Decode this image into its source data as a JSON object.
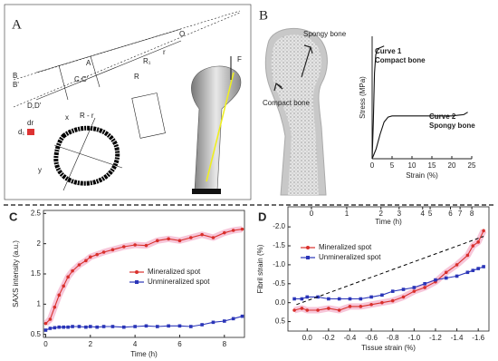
{
  "diagram_a": {
    "label": "A",
    "texts": [
      "F",
      "R - r",
      "x",
      "y",
      "B",
      "B'",
      "D,D'",
      "C,C'",
      "A",
      "R",
      "R₁",
      "r",
      "O",
      "dr",
      "d₁"
    ]
  },
  "diagram_b": {
    "label": "B",
    "texts": [
      "Spongy bone",
      "Compact bone"
    ]
  },
  "chart_data": [
    {
      "type": "line",
      "xlabel": "Strain (%)",
      "ylabel": "Stress (MPa)",
      "xlim": [
        0,
        25
      ],
      "ylim": [
        0,
        100
      ],
      "xticks": [
        0,
        5,
        10,
        15,
        20,
        25
      ],
      "frame": false,
      "annotations": [
        "Curve 1",
        "Compact bone",
        "Curve 2",
        "Spongy bone"
      ],
      "series": [
        {
          "color": "#111111",
          "x": [
            0,
            0.3,
            0.6,
            0.9,
            1.5,
            3
          ],
          "values": [
            0,
            30,
            70,
            85,
            90,
            92
          ]
        },
        {
          "color": "#111111",
          "x": [
            0,
            1,
            2,
            3,
            4,
            5,
            8,
            12,
            16,
            20,
            23,
            24
          ],
          "values": [
            0,
            8,
            20,
            30,
            34,
            35,
            35,
            35,
            35,
            35,
            36,
            38
          ]
        }
      ]
    },
    {
      "type": "line",
      "panel": "C",
      "xlabel": "Time (h)",
      "ylabel": "SAXS intensity (a.u.)",
      "xlim": [
        -0.1,
        8.9
      ],
      "ylim": [
        0.45,
        2.55
      ],
      "xticks": [
        0,
        2,
        4,
        6,
        8
      ],
      "yticks": [
        0.5,
        1,
        1.5,
        2,
        2.5
      ],
      "frame": true,
      "legend": "center right",
      "series": [
        {
          "name": "Mineralized spot",
          "color": "#d9302c",
          "band": "#f5b8d0",
          "marker": "circle",
          "x": [
            0,
            0.2,
            0.4,
            0.6,
            0.8,
            1,
            1.2,
            1.5,
            1.8,
            2,
            2.3,
            2.6,
            3,
            3.5,
            4,
            4.5,
            5,
            5.5,
            6,
            6.5,
            7,
            7.5,
            8,
            8.4,
            8.8
          ],
          "values": [
            0.68,
            0.75,
            0.95,
            1.15,
            1.3,
            1.45,
            1.55,
            1.65,
            1.72,
            1.78,
            1.82,
            1.86,
            1.9,
            1.95,
            1.98,
            1.97,
            2.05,
            2.08,
            2.05,
            2.1,
            2.15,
            2.1,
            2.18,
            2.22,
            2.24
          ]
        },
        {
          "name": "Unmineralized spot",
          "color": "#2a35b8",
          "marker": "square",
          "x": [
            0,
            0.2,
            0.4,
            0.6,
            0.8,
            1,
            1.2,
            1.5,
            1.8,
            2,
            2.3,
            2.6,
            3,
            3.5,
            4,
            4.5,
            5,
            5.5,
            6,
            6.5,
            7,
            7.5,
            8,
            8.4,
            8.8
          ],
          "values": [
            0.57,
            0.6,
            0.61,
            0.62,
            0.62,
            0.62,
            0.63,
            0.63,
            0.62,
            0.63,
            0.62,
            0.63,
            0.63,
            0.62,
            0.63,
            0.64,
            0.63,
            0.64,
            0.64,
            0.63,
            0.66,
            0.7,
            0.72,
            0.76,
            0.8
          ]
        }
      ]
    },
    {
      "type": "line",
      "panel": "D",
      "xlabel": "Tissue strain (%)",
      "ylabel": "Fibril strain (%)",
      "x2label": "Time (h)",
      "xlim": [
        0.18,
        -1.7
      ],
      "ylim": [
        0.75,
        -2.53
      ],
      "xticks": [
        {
          "value": 0,
          "label": "0.0"
        },
        -0.2,
        -0.4,
        -0.6,
        -0.8,
        {
          "value": -1,
          "label": "-1.0"
        },
        -1.2,
        -1.4,
        -1.6
      ],
      "yticks": [
        {
          "value": -2,
          "label": "-2.0"
        },
        -1.5,
        {
          "value": -1,
          "label": "-1.0"
        },
        -0.5,
        {
          "value": 0,
          "label": "0.0"
        },
        0.5
      ],
      "x2ticks": [
        {
          "value": -0.04,
          "label": "0"
        },
        {
          "value": -0.37,
          "label": "1"
        },
        {
          "value": -0.69,
          "label": "2"
        },
        {
          "value": -0.86,
          "label": "3"
        },
        {
          "value": -1.08,
          "label": "4"
        },
        {
          "value": -1.15,
          "label": "5"
        },
        {
          "value": -1.34,
          "label": "6"
        },
        {
          "value": -1.43,
          "label": "7"
        },
        {
          "value": -1.54,
          "label": "8"
        }
      ],
      "frame": true,
      "legend": "upper left",
      "series": [
        {
          "name": "Mineralized spot",
          "color": "#d9302c",
          "band": "#f5b8d0",
          "marker": "circle",
          "x": [
            0.12,
            0.05,
            0,
            -0.1,
            -0.2,
            -0.3,
            -0.4,
            -0.5,
            -0.6,
            -0.7,
            -0.8,
            -0.9,
            -1.0,
            -1.1,
            -1.2,
            -1.3,
            -1.4,
            -1.5,
            -1.55,
            -1.6,
            -1.65
          ],
          "values": [
            0.2,
            0.15,
            0.2,
            0.2,
            0.15,
            0.2,
            0.1,
            0.1,
            0.05,
            0,
            -0.05,
            -0.15,
            -0.3,
            -0.4,
            -0.55,
            -0.8,
            -1.0,
            -1.25,
            -1.5,
            -1.6,
            -1.9
          ]
        },
        {
          "name": "Unmineralized spot",
          "color": "#2a35b8",
          "marker": "square",
          "x": [
            0.12,
            0.05,
            0,
            -0.1,
            -0.2,
            -0.3,
            -0.4,
            -0.5,
            -0.6,
            -0.7,
            -0.8,
            -0.9,
            -1.0,
            -1.1,
            -1.2,
            -1.3,
            -1.4,
            -1.5,
            -1.55,
            -1.6,
            -1.65
          ],
          "values": [
            -0.1,
            -0.1,
            -0.15,
            -0.15,
            -0.1,
            -0.1,
            -0.1,
            -0.1,
            -0.15,
            -0.2,
            -0.3,
            -0.35,
            -0.4,
            -0.5,
            -0.6,
            -0.65,
            -0.7,
            -0.8,
            -0.85,
            -0.9,
            -0.95
          ]
        },
        {
          "color": "#000000",
          "dash": true,
          "x": [
            0.1,
            -1.65
          ],
          "values": [
            0.05,
            -1.75
          ]
        }
      ]
    }
  ]
}
